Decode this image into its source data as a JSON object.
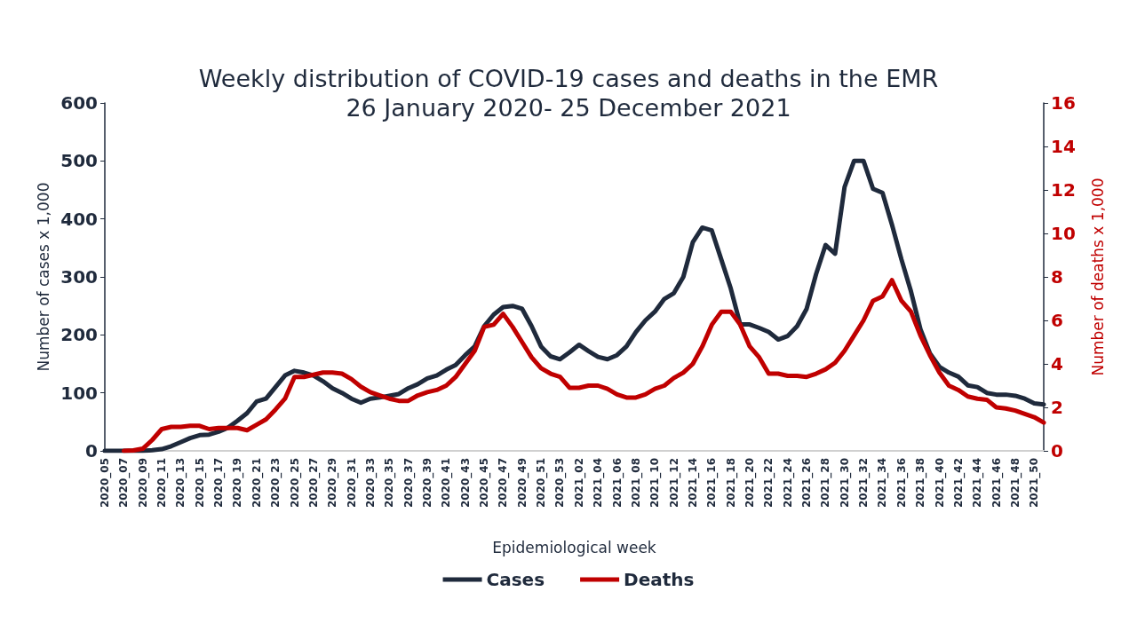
{
  "chart_data": {
    "type": "line",
    "title": "Weekly distribution of COVID-19 cases and deaths in the EMR",
    "subtitle": "26 January 2020- 25 December 2021",
    "xlabel": "Epidemiological week",
    "ylabel": "Number of cases x 1,000",
    "y2label": "Number of deaths x 1,000",
    "categories": [
      "2020_05",
      null,
      "2020_07",
      null,
      "2020_09",
      null,
      "2020_11",
      null,
      "2020_13",
      null,
      "2020_15",
      null,
      "2020_17",
      null,
      "2020_19",
      null,
      "2020_21",
      null,
      "2020_23",
      null,
      "2020_25",
      null,
      "2020_27",
      null,
      "2020_29",
      null,
      "2020_31",
      null,
      "2020_33",
      null,
      "2020_35",
      null,
      "2020_37",
      null,
      "2020_39",
      null,
      "2020_41",
      null,
      "2020_43",
      null,
      "2020_45",
      null,
      "2020_47",
      null,
      "2020_49",
      null,
      "2020_51",
      null,
      "2020_53",
      null,
      "2021_02",
      null,
      "2021_04",
      null,
      "2021_06",
      null,
      "2021_08",
      null,
      "2021_10",
      null,
      "2021_12",
      null,
      "2021_14",
      null,
      "2021_16",
      null,
      "2021_18",
      null,
      "2021_20",
      null,
      "2021_22",
      null,
      "2021_24",
      null,
      "2021_26",
      null,
      "2021_28",
      null,
      "2021_30",
      null,
      "2021_32",
      null,
      "2021_34",
      null,
      "2021_36",
      null,
      "2021_38",
      null,
      "2021_40",
      null,
      "2021_42",
      null,
      "2021_44",
      null,
      "2021_46",
      null,
      "2021_48",
      null,
      "2021_50",
      null
    ],
    "series": [
      {
        "name": "Cases",
        "color": "#1f2a3c",
        "values": [
          0,
          0,
          0,
          0,
          0,
          1,
          3,
          8,
          15,
          22,
          27,
          28,
          33,
          40,
          52,
          65,
          85,
          90,
          110,
          130,
          138,
          135,
          130,
          120,
          108,
          100,
          90,
          83,
          90,
          92,
          95,
          98,
          108,
          115,
          125,
          130,
          140,
          148,
          165,
          180,
          215,
          235,
          248,
          250,
          245,
          215,
          180,
          163,
          158,
          170,
          183,
          172,
          162,
          158,
          165,
          180,
          205,
          225,
          240,
          262,
          272,
          300,
          360,
          385,
          380,
          330,
          280,
          218,
          218,
          212,
          205,
          192,
          198,
          215,
          245,
          305,
          355,
          340,
          455,
          500,
          500,
          452,
          445,
          390,
          330,
          275,
          210,
          168,
          145,
          135,
          128,
          113,
          110,
          100,
          97,
          97,
          95,
          90,
          82,
          80
        ]
      },
      {
        "name": "Deaths",
        "color": "#c00000",
        "axis": "y2",
        "values": [
          null,
          null,
          0,
          0.02,
          0.1,
          0.5,
          1.0,
          1.1,
          1.1,
          1.15,
          1.15,
          1.0,
          1.05,
          1.05,
          1.05,
          0.95,
          1.2,
          1.45,
          1.9,
          2.4,
          3.4,
          3.4,
          3.5,
          3.6,
          3.6,
          3.55,
          3.3,
          2.95,
          2.7,
          2.55,
          2.4,
          2.3,
          2.3,
          2.55,
          2.7,
          2.8,
          3.0,
          3.4,
          4.0,
          4.6,
          5.7,
          5.8,
          6.3,
          5.7,
          5.0,
          4.3,
          3.8,
          3.55,
          3.4,
          2.9,
          2.9,
          3.0,
          3.0,
          2.85,
          2.6,
          2.45,
          2.45,
          2.6,
          2.85,
          3.0,
          3.35,
          3.6,
          4.0,
          4.8,
          5.8,
          6.4,
          6.4,
          5.8,
          4.8,
          4.3,
          3.55,
          3.55,
          3.45,
          3.45,
          3.4,
          3.55,
          3.75,
          4.05,
          4.6,
          5.3,
          6.0,
          6.9,
          7.1,
          7.85,
          6.9,
          6.4,
          5.3,
          4.4,
          3.6,
          3.0,
          2.8,
          2.5,
          2.4,
          2.35,
          2.0,
          1.95,
          1.85,
          1.7,
          1.55,
          1.3
        ]
      }
    ],
    "ylim": [
      0,
      600
    ],
    "yticks": [
      0,
      100,
      200,
      300,
      400,
      500,
      600
    ],
    "y2lim": [
      0,
      16
    ],
    "y2ticks": [
      0,
      2,
      4,
      6,
      8,
      10,
      12,
      14,
      16
    ],
    "grid": false,
    "legend": "bottom",
    "marker": "none",
    "line_style": "solid"
  }
}
